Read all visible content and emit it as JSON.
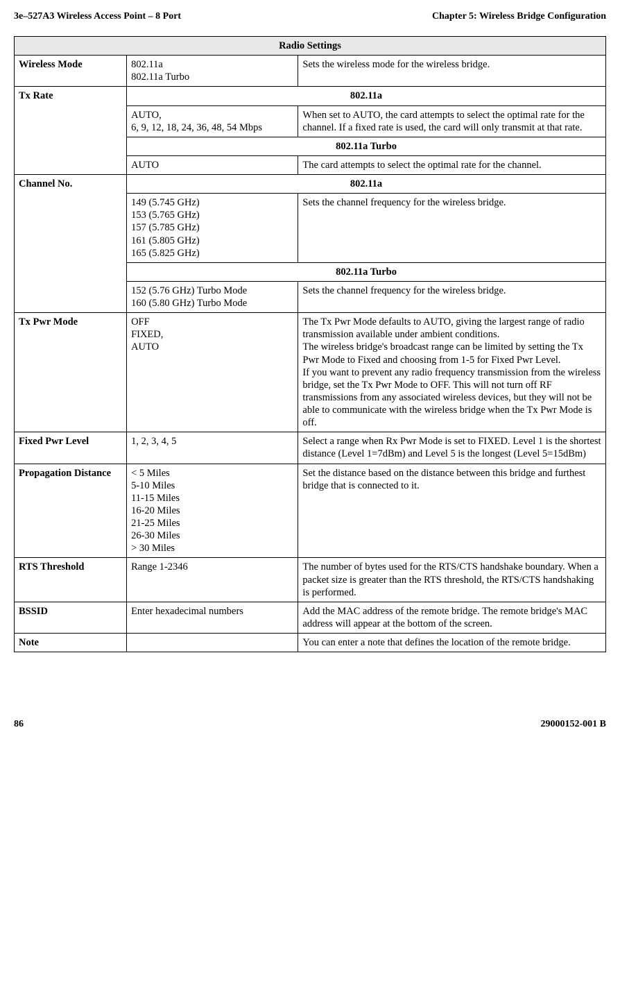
{
  "header": {
    "left": "3e–527A3 Wireless Access Point – 8 Port",
    "right": "Chapter 5: Wireless Bridge Configuration"
  },
  "footer": {
    "page": "86",
    "doc": "29000152-001 B"
  },
  "table": {
    "title": "Radio Settings",
    "wirelessMode": {
      "label": "Wireless Mode",
      "values": "802.11a\n802.11a Turbo",
      "desc": "Sets the wireless mode for the wireless bridge."
    },
    "txRate": {
      "label": "Tx Rate",
      "h1": "802.11a",
      "v1": "AUTO,\n6, 9, 12, 18, 24, 36, 48, 54 Mbps",
      "d1": "When set to AUTO, the card attempts to select the optimal rate for the channel. If a fixed rate is used, the card will only transmit at that rate.",
      "h2": "802.11a Turbo",
      "v2": "AUTO",
      "d2": "The card attempts to select the optimal rate for the channel."
    },
    "channelNo": {
      "label": "Channel No.",
      "h1": "802.11a",
      "v1": "149 (5.745 GHz)\n153 (5.765 GHz)\n157 (5.785 GHz)\n161 (5.805 GHz)\n165 (5.825 GHz)",
      "d1": "Sets the channel frequency for the wireless bridge.",
      "h2": "802.11a Turbo",
      "v2": "152 (5.76 GHz) Turbo Mode\n160 (5.80 GHz) Turbo Mode",
      "d2": "Sets the channel frequency for the wireless bridge."
    },
    "txPwr": {
      "label": "Tx Pwr Mode",
      "values": "OFF\nFIXED,\nAUTO",
      "p1": "The Tx Pwr Mode defaults to AUTO, giving the largest range of radio transmission available under ambient conditions.",
      "p2": "The wireless bridge's broadcast range can be limited by setting the Tx Pwr Mode to Fixed and choosing from 1-5 for Fixed Pwr Level.",
      "p3": "If you want to prevent any radio frequency transmission from the wireless bridge, set the Tx Pwr Mode to OFF. This will not turn off RF transmissions from any associated wireless devices, but they will not be able to communicate with the wireless bridge when the Tx Pwr Mode is off."
    },
    "fixedPwr": {
      "label": "Fixed Pwr Level",
      "values": "1, 2, 3, 4, 5",
      "desc": "Select a range when Rx Pwr Mode is set to FIXED. Level 1 is the shortest distance (Level 1=7dBm) and Level 5 is the longest  (Level 5=15dBm)"
    },
    "propagation": {
      "label": "Propagation Distance",
      "values": "< 5 Miles\n5-10 Miles\n11-15 Miles\n16-20 Miles\n21-25 Miles\n26-30 Miles\n> 30 Miles",
      "desc": "Set the distance based on the distance between this bridge and furthest bridge that is connected to it."
    },
    "rts": {
      "label": "RTS Threshold",
      "values": "Range 1-2346",
      "desc": "The number of bytes used for the RTS/CTS handshake boundary.  When a packet size is greater than the RTS threshold, the RTS/CTS handshaking is performed."
    },
    "bssid": {
      "label": "BSSID",
      "values": "Enter hexadecimal numbers",
      "desc": "Add the MAC address of the remote bridge. The remote bridge's MAC address will appear at the bottom of the screen."
    },
    "note": {
      "label": "Note",
      "values": "",
      "desc": "You can enter a note that defines the location of the remote bridge."
    }
  }
}
